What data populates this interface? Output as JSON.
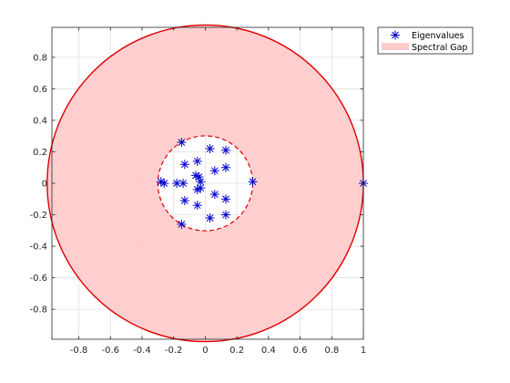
{
  "chart_data": {
    "type": "scatter",
    "title": "",
    "xlabel": "",
    "ylabel": "",
    "xlim": [
      -0.97,
      1.0
    ],
    "ylim": [
      -0.99,
      0.99
    ],
    "xticks": [
      -0.8,
      -0.6,
      -0.4,
      -0.2,
      0,
      0.2,
      0.4,
      0.6,
      0.8,
      1
    ],
    "xtick_labels": [
      "-0.8",
      "-0.6",
      "-0.4",
      "-0.2",
      "0",
      "0.2",
      "0.4",
      "0.6",
      "0.8",
      "1"
    ],
    "yticks": [
      0.8,
      0.6,
      0.4,
      0.2,
      0,
      -0.2,
      -0.4,
      -0.6,
      -0.8
    ],
    "ytick_labels": [
      "0.8",
      "0.6",
      "0.4",
      "0.2",
      "0",
      "-0.2",
      "-0.4",
      "-0.6",
      "-0.8"
    ],
    "grid": true,
    "legend_position": "outside-top-right",
    "series": [
      {
        "name": "Eigenvalues",
        "marker": "asterisk",
        "color": "#0000CC",
        "points": [
          {
            "x": 1.0,
            "y": 0.0
          },
          {
            "x": 0.3,
            "y": 0.01
          },
          {
            "x": -0.15,
            "y": 0.26
          },
          {
            "x": -0.15,
            "y": -0.26
          },
          {
            "x": 0.03,
            "y": 0.22
          },
          {
            "x": 0.13,
            "y": 0.21
          },
          {
            "x": 0.03,
            "y": -0.22
          },
          {
            "x": 0.13,
            "y": -0.2
          },
          {
            "x": -0.13,
            "y": 0.12
          },
          {
            "x": -0.13,
            "y": -0.11
          },
          {
            "x": -0.05,
            "y": 0.14
          },
          {
            "x": -0.05,
            "y": -0.14
          },
          {
            "x": 0.06,
            "y": 0.08
          },
          {
            "x": 0.06,
            "y": -0.07
          },
          {
            "x": 0.13,
            "y": 0.1
          },
          {
            "x": 0.13,
            "y": -0.1
          },
          {
            "x": -0.26,
            "y": 0.0
          },
          {
            "x": -0.28,
            "y": 0.01
          },
          {
            "x": -0.18,
            "y": 0.0
          },
          {
            "x": -0.14,
            "y": 0.0
          },
          {
            "x": -0.06,
            "y": 0.05
          },
          {
            "x": -0.04,
            "y": 0.04
          },
          {
            "x": -0.05,
            "y": -0.04
          },
          {
            "x": -0.03,
            "y": -0.03
          },
          {
            "x": -0.03,
            "y": 0.01
          }
        ]
      },
      {
        "name": "Spectral Gap",
        "type": "area",
        "shape": "annulus",
        "center": [
          0,
          0
        ],
        "outer_radius": 1.0,
        "inner_radius": 0.3,
        "fill_color": "#FFCCCC",
        "edge_color": "#DD0000"
      }
    ]
  }
}
